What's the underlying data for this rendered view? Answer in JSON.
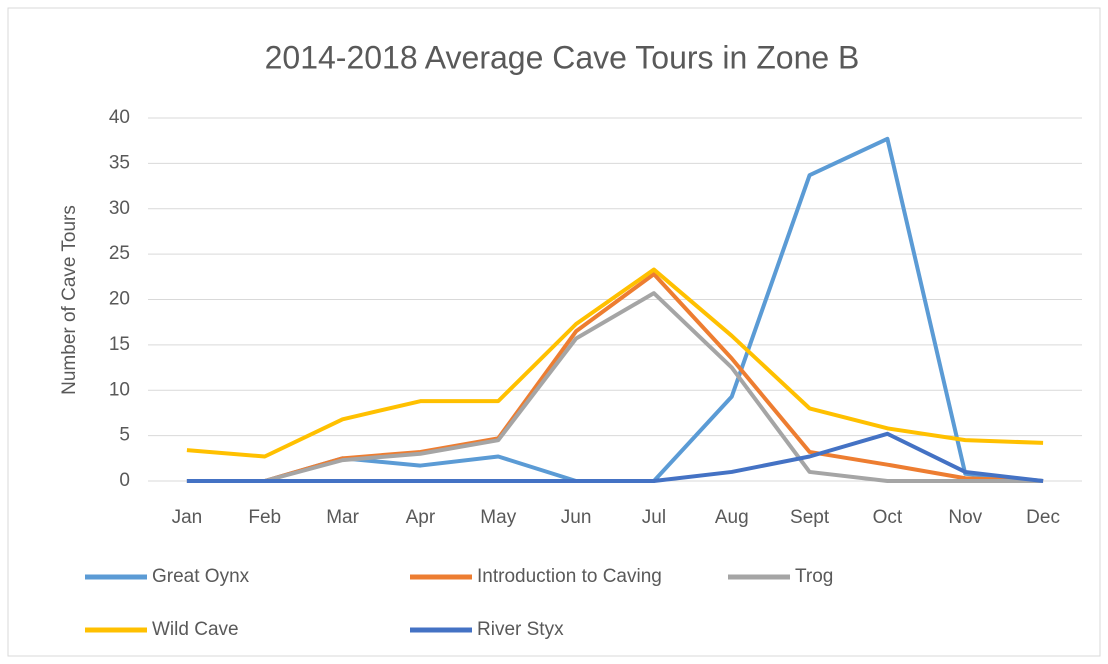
{
  "chart_data": {
    "type": "line",
    "title": "2014-2018 Average Cave Tours in Zone B",
    "y_label": "Number  of Cave Tours",
    "categories": [
      "Jan",
      "Feb",
      "Mar",
      "Apr",
      "May",
      "Jun",
      "Jul",
      "Aug",
      "Sept",
      "Oct",
      "Nov",
      "Dec"
    ],
    "series": [
      {
        "name": "Great Oynx",
        "color": "#5b9bd5",
        "values": [
          0,
          0,
          2.5,
          1.7,
          2.7,
          0,
          0,
          9.3,
          33.7,
          37.7,
          0.8,
          0
        ]
      },
      {
        "name": "Introduction to Caving",
        "color": "#ed7d31",
        "values": [
          0,
          0,
          2.5,
          3.2,
          4.7,
          16.5,
          22.8,
          13.5,
          3.2,
          1.8,
          0.3,
          0
        ]
      },
      {
        "name": "Trog",
        "color": "#a5a5a5",
        "values": [
          0,
          0,
          2.3,
          3,
          4.5,
          15.7,
          20.7,
          12.5,
          1,
          0,
          0,
          0
        ]
      },
      {
        "name": "Wild Cave",
        "color": "#ffc000",
        "values": [
          3.4,
          2.7,
          6.8,
          8.8,
          8.8,
          17.3,
          23.3,
          16,
          8,
          5.8,
          4.5,
          4.2
        ]
      },
      {
        "name": "River Styx",
        "color": "#4472c4",
        "values": [
          0,
          0,
          0,
          0,
          0,
          0,
          0,
          1,
          2.7,
          5.2,
          1,
          0
        ]
      }
    ],
    "ylim": [
      0,
      40
    ],
    "yticks": [
      0,
      5,
      10,
      15,
      20,
      25,
      30,
      35,
      40
    ],
    "grid": true
  }
}
